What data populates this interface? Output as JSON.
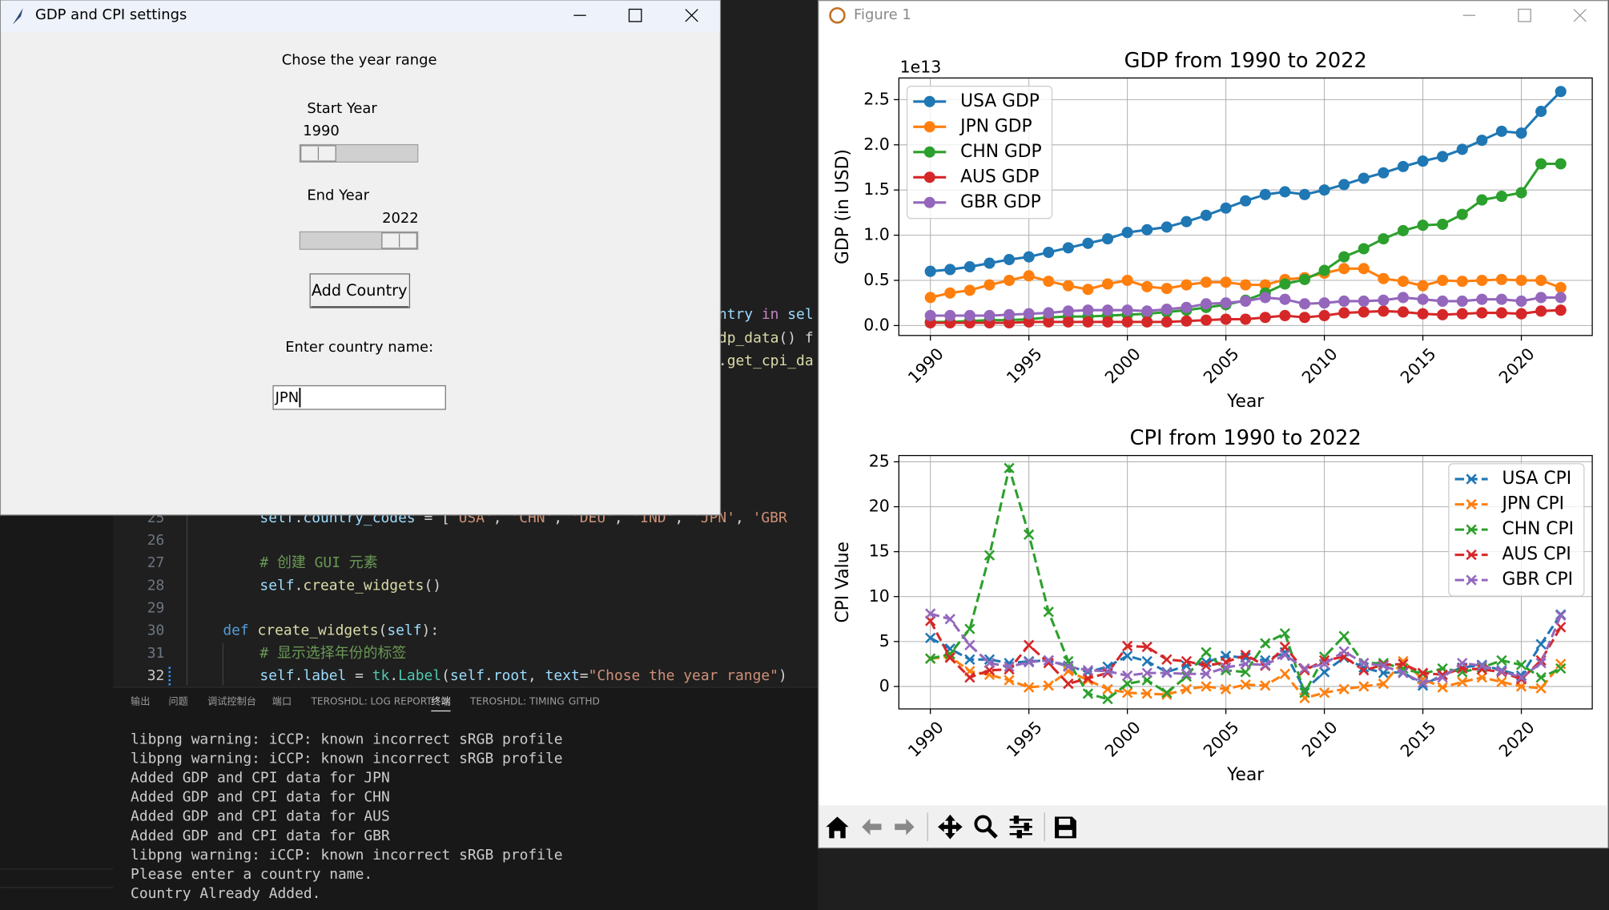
{
  "tk_window": {
    "title": "GDP and CPI settings",
    "heading": "Chose the year range",
    "start_label": "Start Year",
    "start_value": 1990,
    "end_label": "End Year",
    "end_value": 2022,
    "button": "Add Country",
    "entry_label": "Enter country name:",
    "entry_text": "JPN"
  },
  "editor": {
    "fragments": [
      [
        {
          "text": "ntry",
          "color": "#9cdcfe"
        },
        {
          "text": " in ",
          "color": "#c586c0"
        },
        {
          "text": "sel",
          "color": "#9cdcfe"
        }
      ],
      [
        {
          "text": "dp_data",
          "color": "#dcdcaa"
        },
        {
          "text": "() f",
          "color": "#d4d4d4"
        }
      ],
      [
        {
          "text": ".",
          "color": "#d4d4d4"
        },
        {
          "text": "get_cpi_da",
          "color": "#dcdcaa"
        }
      ]
    ],
    "lines": [
      {
        "number": 25,
        "segments": [
          {
            "text": "self",
            "color": "#9cdcfe"
          },
          {
            "text": ".",
            "color": "#d4d4d4"
          },
          {
            "text": "country_codes",
            "color": "#9cdcfe"
          },
          {
            "text": " = [",
            "color": "#d4d4d4"
          },
          {
            "text": "'USA'",
            "color": "#ce9178"
          },
          {
            "text": ", ",
            "color": "#d4d4d4"
          },
          {
            "text": "'CHN'",
            "color": "#ce9178"
          },
          {
            "text": ", ",
            "color": "#d4d4d4"
          },
          {
            "text": "'DEU'",
            "color": "#ce9178"
          },
          {
            "text": ", ",
            "color": "#d4d4d4"
          },
          {
            "text": "'IND'",
            "color": "#ce9178"
          },
          {
            "text": ", ",
            "color": "#d4d4d4"
          },
          {
            "text": "'JPN'",
            "color": "#ce9178"
          },
          {
            "text": ", ",
            "color": "#d4d4d4"
          },
          {
            "text": "'GBR",
            "color": "#ce9178"
          }
        ]
      },
      {
        "number": 26,
        "segments": []
      },
      {
        "number": 27,
        "segments": [
          {
            "text": "# 创建 GUI 元素",
            "color": "#6a9955"
          }
        ]
      },
      {
        "number": 28,
        "segments": [
          {
            "text": "self",
            "color": "#9cdcfe"
          },
          {
            "text": ".",
            "color": "#d4d4d4"
          },
          {
            "text": "create_widgets",
            "color": "#dcdcaa"
          },
          {
            "text": "()",
            "color": "#d4d4d4"
          }
        ]
      },
      {
        "number": 29,
        "segments": []
      },
      {
        "number": 30,
        "segments": [
          {
            "text": "def",
            "color": "#569cd6"
          },
          {
            "text": " ",
            "color": "#d4d4d4"
          },
          {
            "text": "create_widgets",
            "color": "#dcdcaa"
          },
          {
            "text": "(",
            "color": "#d4d4d4"
          },
          {
            "text": "self",
            "color": "#9cdcfe"
          },
          {
            "text": "):",
            "color": "#d4d4d4"
          }
        ]
      },
      {
        "number": 31,
        "segments": [
          {
            "text": "# 显示选择年份的标签",
            "color": "#6a9955"
          }
        ]
      },
      {
        "number": 32,
        "segments": [
          {
            "text": "self",
            "color": "#9cdcfe"
          },
          {
            "text": ".",
            "color": "#d4d4d4"
          },
          {
            "text": "label",
            "color": "#9cdcfe"
          },
          {
            "text": " = ",
            "color": "#d4d4d4"
          },
          {
            "text": "tk",
            "color": "#4ec9b0"
          },
          {
            "text": ".",
            "color": "#d4d4d4"
          },
          {
            "text": "Label",
            "color": "#4ec9b0"
          },
          {
            "text": "(",
            "color": "#d4d4d4"
          },
          {
            "text": "self",
            "color": "#9cdcfe"
          },
          {
            "text": ".",
            "color": "#d4d4d4"
          },
          {
            "text": "root",
            "color": "#9cdcfe"
          },
          {
            "text": ", ",
            "color": "#d4d4d4"
          },
          {
            "text": "text",
            "color": "#9cdcfe"
          },
          {
            "text": "=",
            "color": "#d4d4d4"
          },
          {
            "text": "\"Chose the year range\"",
            "color": "#ce9178"
          },
          {
            "text": ")",
            "color": "#d4d4d4"
          }
        ]
      }
    ]
  },
  "panel": {
    "tabs": [
      "输出",
      "问题",
      "调试控制台",
      "端口",
      "TEROSHDL: LOG REPORT",
      "终端",
      "TEROSHDL: TIMING",
      "GITHD"
    ]
  },
  "terminal": {
    "lines": [
      "libpng warning: iCCP: known incorrect sRGB profile",
      "libpng warning: iCCP: known incorrect sRGB profile",
      "Added GDP and CPI data for JPN",
      "Added GDP and CPI data for CHN",
      "Added GDP and CPI data for AUS",
      "Added GDP and CPI data for GBR",
      "libpng warning: iCCP: known incorrect sRGB profile",
      "Please enter a country name.",
      "Country Already Added."
    ]
  },
  "figure_window": {
    "title": "Figure 1"
  },
  "chart_data": [
    {
      "type": "line",
      "title": "GDP from 1990 to 2022",
      "xlabel": "Year",
      "ylabel": "GDP (in USD)",
      "offset_label": "1e13",
      "grid": true,
      "legend": "upper left",
      "line_style": "solid",
      "marker": "o",
      "x": [
        1990,
        1991,
        1992,
        1993,
        1994,
        1995,
        1996,
        1997,
        1998,
        1999,
        2000,
        2001,
        2002,
        2003,
        2004,
        2005,
        2006,
        2007,
        2008,
        2009,
        2010,
        2011,
        2012,
        2013,
        2014,
        2015,
        2016,
        2017,
        2018,
        2019,
        2020,
        2021,
        2022
      ],
      "xlim": [
        1988.4,
        2023.6
      ],
      "xticks": [
        1990,
        1995,
        2000,
        2005,
        2010,
        2015,
        2020
      ],
      "ylim": [
        -0.11,
        2.74
      ],
      "yticks": [
        {
          "value": 0,
          "label": "0.0"
        },
        0.5,
        {
          "value": 1,
          "label": "1.0"
        },
        1.5,
        {
          "value": 2,
          "label": "2.0"
        },
        2.5
      ],
      "series": [
        {
          "name": "USA GDP",
          "color": "#1f77b4",
          "values": [
            0.6,
            0.62,
            0.65,
            0.69,
            0.73,
            0.76,
            0.81,
            0.86,
            0.91,
            0.96,
            1.03,
            1.06,
            1.09,
            1.15,
            1.22,
            1.3,
            1.38,
            1.45,
            1.48,
            1.45,
            1.5,
            1.56,
            1.63,
            1.69,
            1.76,
            1.82,
            1.87,
            1.95,
            2.05,
            2.15,
            2.13,
            2.37,
            2.59
          ]
        },
        {
          "name": "JPN GDP",
          "color": "#ff7f0e",
          "values": [
            0.31,
            0.36,
            0.39,
            0.45,
            0.5,
            0.55,
            0.49,
            0.44,
            0.4,
            0.46,
            0.5,
            0.43,
            0.41,
            0.45,
            0.48,
            0.48,
            0.45,
            0.45,
            0.51,
            0.53,
            0.58,
            0.63,
            0.63,
            0.52,
            0.49,
            0.44,
            0.5,
            0.49,
            0.5,
            0.51,
            0.5,
            0.5,
            0.42
          ]
        },
        {
          "name": "CHN GDP",
          "color": "#2ca02c",
          "values": [
            0.04,
            0.04,
            0.05,
            0.06,
            0.06,
            0.07,
            0.09,
            0.1,
            0.1,
            0.11,
            0.12,
            0.13,
            0.15,
            0.17,
            0.2,
            0.23,
            0.28,
            0.36,
            0.46,
            0.51,
            0.61,
            0.76,
            0.85,
            0.96,
            1.05,
            1.11,
            1.12,
            1.23,
            1.39,
            1.43,
            1.47,
            1.79,
            1.79
          ]
        },
        {
          "name": "AUS GDP",
          "color": "#d62728",
          "values": [
            0.03,
            0.03,
            0.03,
            0.03,
            0.03,
            0.04,
            0.04,
            0.04,
            0.04,
            0.04,
            0.04,
            0.04,
            0.04,
            0.05,
            0.06,
            0.07,
            0.07,
            0.09,
            0.11,
            0.09,
            0.11,
            0.14,
            0.15,
            0.16,
            0.15,
            0.13,
            0.12,
            0.13,
            0.14,
            0.14,
            0.13,
            0.16,
            0.17
          ]
        },
        {
          "name": "GBR GDP",
          "color": "#9467bd",
          "values": [
            0.11,
            0.11,
            0.11,
            0.11,
            0.12,
            0.13,
            0.14,
            0.16,
            0.17,
            0.17,
            0.17,
            0.16,
            0.18,
            0.2,
            0.24,
            0.25,
            0.27,
            0.31,
            0.29,
            0.24,
            0.25,
            0.27,
            0.27,
            0.28,
            0.31,
            0.29,
            0.27,
            0.27,
            0.29,
            0.29,
            0.27,
            0.31,
            0.31
          ]
        }
      ]
    },
    {
      "type": "line",
      "title": "CPI from 1990 to 2022",
      "xlabel": "Year",
      "ylabel": "CPI Value",
      "grid": true,
      "legend": "upper right",
      "line_style": "dashed",
      "marker": "x",
      "x": [
        1990,
        1991,
        1992,
        1993,
        1994,
        1995,
        1996,
        1997,
        1998,
        1999,
        2000,
        2001,
        2002,
        2003,
        2004,
        2005,
        2006,
        2007,
        2008,
        2009,
        2010,
        2011,
        2012,
        2013,
        2014,
        2015,
        2016,
        2017,
        2018,
        2019,
        2020,
        2021,
        2022
      ],
      "xlim": [
        1988.4,
        2023.6
      ],
      "xticks": [
        1990,
        1995,
        2000,
        2005,
        2010,
        2015,
        2020
      ],
      "ylim": [
        -2.5,
        25.7
      ],
      "yticks": [
        0,
        5,
        10,
        15,
        20,
        25
      ],
      "series": [
        {
          "name": "USA CPI",
          "color": "#1f77b4",
          "values": [
            5.4,
            4.2,
            3.0,
            3.0,
            2.6,
            2.8,
            2.9,
            2.3,
            1.6,
            2.2,
            3.4,
            2.8,
            1.6,
            2.3,
            2.7,
            3.4,
            3.2,
            2.9,
            3.8,
            -0.4,
            1.6,
            3.2,
            2.1,
            1.5,
            1.6,
            0.1,
            1.3,
            2.1,
            2.4,
            1.8,
            1.2,
            4.7,
            8.0
          ]
        },
        {
          "name": "JPN CPI",
          "color": "#ff7f0e",
          "values": [
            3.1,
            3.3,
            1.7,
            1.3,
            0.7,
            -0.1,
            0.1,
            1.7,
            0.7,
            -0.3,
            -0.7,
            -0.8,
            -0.9,
            -0.3,
            0.0,
            -0.3,
            0.2,
            0.1,
            1.4,
            -1.3,
            -0.7,
            -0.3,
            0.0,
            0.3,
            2.8,
            0.8,
            -0.1,
            0.5,
            1.0,
            0.5,
            0.0,
            -0.2,
            2.5
          ]
        },
        {
          "name": "CHN CPI",
          "color": "#2ca02c",
          "values": [
            3.1,
            3.6,
            6.4,
            14.6,
            24.3,
            16.9,
            8.3,
            2.8,
            -0.8,
            -1.4,
            0.3,
            0.7,
            -0.7,
            1.1,
            3.8,
            1.8,
            1.6,
            4.8,
            5.9,
            -0.7,
            3.3,
            5.6,
            2.6,
            2.6,
            2.0,
            1.4,
            2.0,
            1.6,
            2.1,
            2.9,
            2.4,
            1.0,
            2.0
          ]
        },
        {
          "name": "AUS CPI",
          "color": "#d62728",
          "values": [
            7.3,
            3.2,
            1.0,
            1.8,
            1.9,
            4.6,
            2.6,
            0.3,
            0.9,
            1.5,
            4.5,
            4.4,
            3.0,
            2.8,
            2.3,
            2.7,
            3.5,
            2.3,
            4.4,
            1.8,
            2.9,
            3.3,
            1.8,
            2.4,
            2.5,
            1.5,
            1.3,
            2.0,
            1.9,
            1.6,
            0.8,
            2.9,
            6.6
          ]
        },
        {
          "name": "GBR CPI",
          "color": "#9467bd",
          "values": [
            8.1,
            7.5,
            4.6,
            2.6,
            2.2,
            2.7,
            2.9,
            2.2,
            1.8,
            1.7,
            1.2,
            1.5,
            1.5,
            1.4,
            1.4,
            2.1,
            2.5,
            2.4,
            3.5,
            2.0,
            2.5,
            3.9,
            2.6,
            2.3,
            1.5,
            0.4,
            1.0,
            2.6,
            2.3,
            1.7,
            1.0,
            2.6,
            7.9
          ]
        }
      ]
    }
  ]
}
